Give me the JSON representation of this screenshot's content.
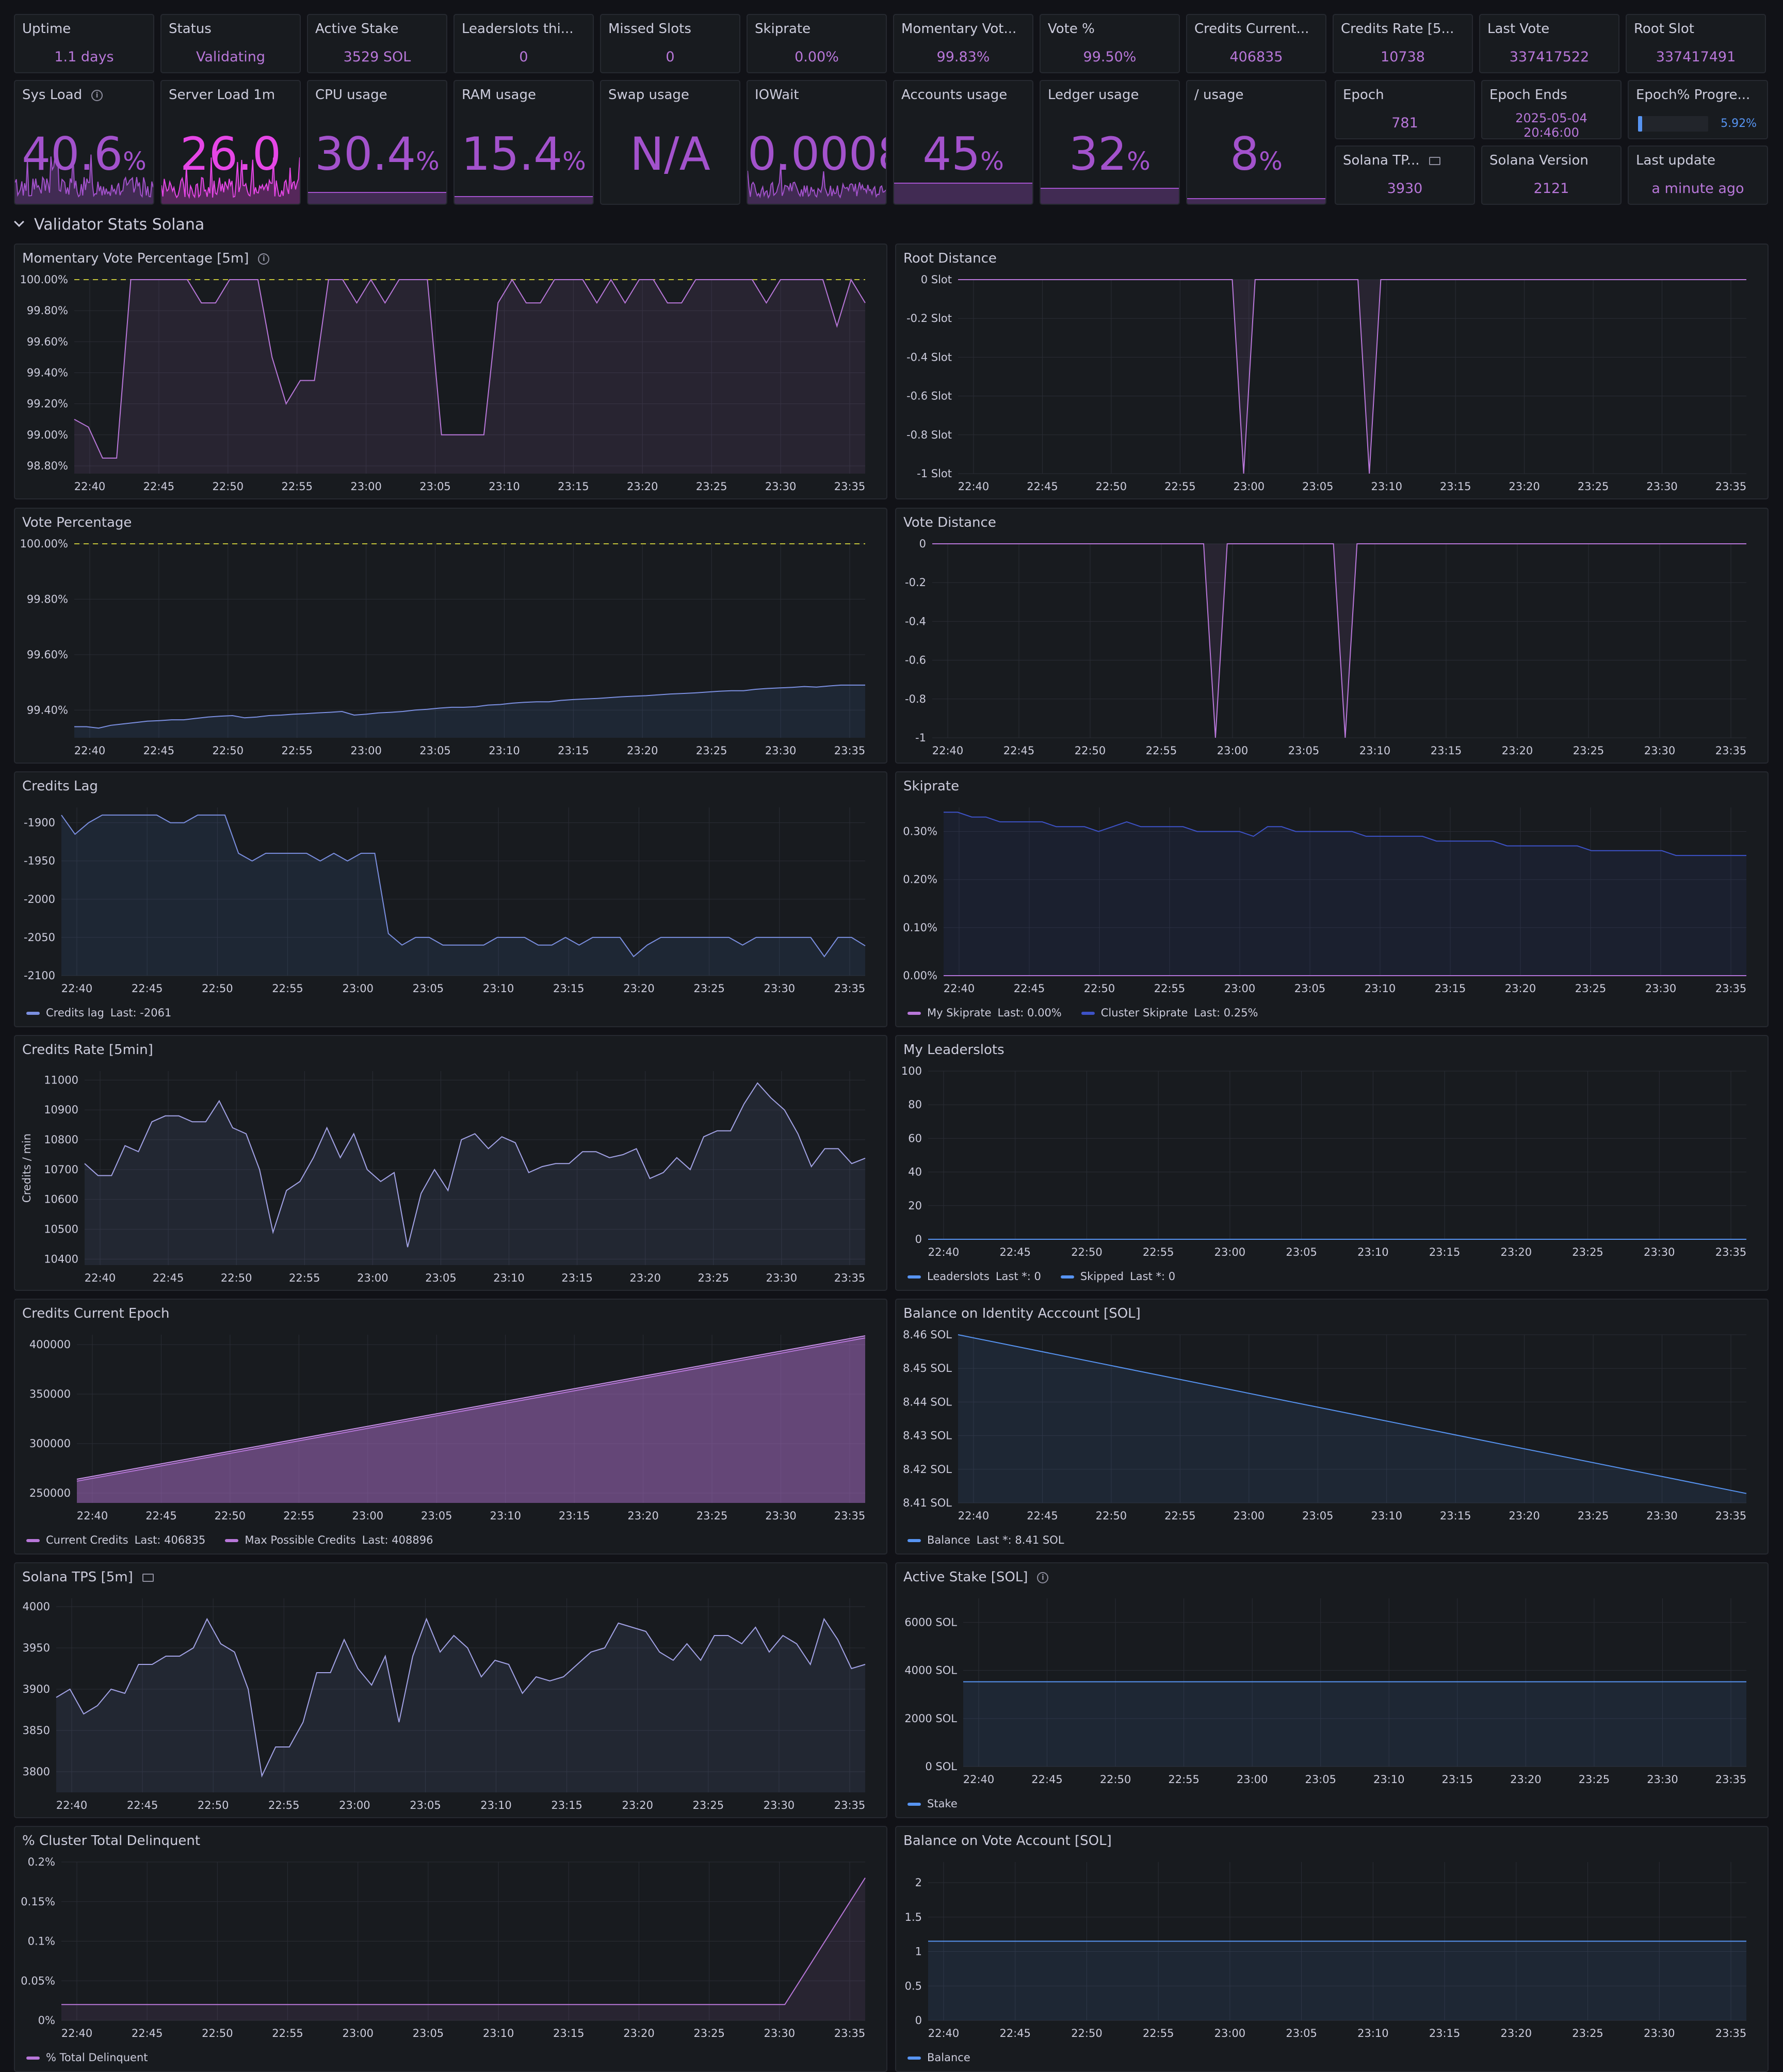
{
  "stats_row1": [
    {
      "title": "Uptime",
      "value": "1.1 days"
    },
    {
      "title": "Status",
      "value": "Validating"
    },
    {
      "title": "Active Stake",
      "value": "3529 SOL"
    },
    {
      "title": "Leaderslots thi...",
      "value": "0"
    },
    {
      "title": "Missed Slots",
      "value": "0"
    },
    {
      "title": "Skiprate",
      "value": "0.00%"
    },
    {
      "title": "Momentary Vot...",
      "value": "99.83%"
    },
    {
      "title": "Vote %",
      "value": "99.50%"
    },
    {
      "title": "Credits Current...",
      "value": "406835"
    },
    {
      "title": "Credits Rate [5...",
      "value": "10738"
    },
    {
      "title": "Last Vote",
      "value": "337417522"
    },
    {
      "title": "Root Slot",
      "value": "337417491"
    }
  ],
  "gauges": [
    {
      "title": "Sys Load",
      "value": "40.6",
      "unit": "%",
      "info": true
    },
    {
      "title": "Server Load 1m",
      "value": "26.0",
      "unit": ""
    },
    {
      "title": "CPU usage",
      "value": "30.4",
      "unit": "%"
    },
    {
      "title": "RAM usage",
      "value": "15.4",
      "unit": "%"
    },
    {
      "title": "Swap usage",
      "value": "N/A",
      "unit": ""
    },
    {
      "title": "IOWait",
      "value": "0.0008",
      "unit": "%"
    },
    {
      "title": "Accounts usage",
      "value": "45",
      "unit": "%"
    },
    {
      "title": "Ledger usage",
      "value": "32",
      "unit": "%"
    },
    {
      "title": "/ usage",
      "value": "8",
      "unit": "%"
    }
  ],
  "small_stats": {
    "epoch": {
      "title": "Epoch",
      "value": "781"
    },
    "epoch_ends": {
      "title": "Epoch Ends",
      "date": "2025-05-04",
      "time": "20:46:00"
    },
    "epoch_progress": {
      "title": "Epoch% Progre...",
      "value": "5.92%",
      "fraction": 0.0592
    },
    "solana_tps": {
      "title": "Solana TP...",
      "value": "3930"
    },
    "solana_version": {
      "title": "Solana Version",
      "value": "2121"
    },
    "last_update": {
      "title": "Last update",
      "value": "a minute ago"
    }
  },
  "row_header": "Validator Stats Solana",
  "colors": {
    "purple": "#b877d9",
    "blue": "#7b8fe0",
    "dark_blue": "#3d52c7",
    "green_threshold": "#73bf69",
    "pink": "#e646e6"
  },
  "time_labels": [
    "22:40",
    "22:45",
    "22:50",
    "22:55",
    "23:00",
    "23:05",
    "23:10",
    "23:15",
    "23:20",
    "23:25",
    "23:30",
    "23:35"
  ],
  "chart_data": [
    {
      "id": "momentary_vote",
      "type": "line",
      "title": "Momentary Vote Percentage [5m]",
      "info": true,
      "yticks": [
        "100.00%",
        "99.80%",
        "99.60%",
        "99.40%",
        "99.20%",
        "99.00%",
        "98.80%"
      ],
      "ylim": [
        98.75,
        100.0
      ],
      "threshold": 100.0,
      "series": [
        {
          "values": [
            99.1,
            99.05,
            98.85,
            98.85,
            100,
            100,
            100,
            100,
            100,
            99.85,
            99.85,
            100,
            100,
            100,
            99.5,
            99.2,
            99.35,
            99.35,
            100,
            100,
            99.85,
            100,
            99.85,
            100,
            100,
            100,
            99.0,
            99.0,
            99.0,
            99.0,
            99.85,
            100,
            99.85,
            99.85,
            100,
            100,
            100,
            99.85,
            100,
            99.85,
            100,
            100,
            99.85,
            99.85,
            100,
            100,
            100,
            100,
            100,
            99.85,
            100,
            100,
            100,
            100,
            99.7,
            100,
            99.85
          ]
        }
      ]
    },
    {
      "id": "root_distance",
      "type": "line",
      "title": "Root Distance",
      "yticks": [
        "0 Slot",
        "-0.2 Slot",
        "-0.4 Slot",
        "-0.6 Slot",
        "-0.8 Slot",
        "-1 Slot"
      ],
      "ylim": [
        -1,
        0
      ],
      "series": [
        {
          "values": [
            0,
            0,
            0,
            0,
            0,
            0,
            0,
            0,
            0,
            0,
            0,
            0,
            0,
            0,
            0,
            0,
            0,
            0,
            0,
            0,
            0,
            0,
            0,
            0,
            0,
            -1,
            0,
            0,
            0,
            0,
            0,
            0,
            0,
            0,
            0,
            0,
            -1,
            0,
            0,
            0,
            0,
            0,
            0,
            0,
            0,
            0,
            0,
            0,
            0,
            0,
            0,
            0,
            0,
            0,
            0,
            0,
            0,
            0,
            0,
            0,
            0,
            0,
            0,
            0,
            0,
            0,
            0,
            0,
            0,
            0
          ]
        }
      ]
    },
    {
      "id": "vote_percentage",
      "type": "line",
      "title": "Vote Percentage",
      "yticks": [
        "100.00%",
        "99.80%",
        "99.60%",
        "99.40%"
      ],
      "ylim": [
        99.3,
        100.0
      ],
      "threshold": 100.0,
      "series": [
        {
          "values": [
            99.34,
            99.34,
            99.335,
            99.345,
            99.35,
            99.355,
            99.36,
            99.362,
            99.365,
            99.365,
            99.37,
            99.375,
            99.378,
            99.38,
            99.372,
            99.375,
            99.38,
            99.382,
            99.385,
            99.387,
            99.39,
            99.392,
            99.395,
            99.382,
            99.385,
            99.39,
            99.392,
            99.395,
            99.4,
            99.403,
            99.407,
            99.41,
            99.41,
            99.412,
            99.418,
            99.42,
            99.425,
            99.428,
            99.43,
            99.43,
            99.435,
            99.438,
            99.44,
            99.442,
            99.445,
            99.448,
            99.45,
            99.452,
            99.455,
            99.458,
            99.46,
            99.462,
            99.465,
            99.468,
            99.47,
            99.47,
            99.475,
            99.478,
            99.48,
            99.482,
            99.485,
            99.483,
            99.487,
            99.49,
            99.49,
            99.49
          ]
        }
      ]
    },
    {
      "id": "vote_distance",
      "type": "line",
      "title": "Vote Distance",
      "yticks": [
        "0",
        "-0.2",
        "-0.4",
        "-0.6",
        "-0.8",
        "-1"
      ],
      "ylim": [
        -1,
        0
      ],
      "series": [
        {
          "values": [
            0,
            0,
            0,
            0,
            0,
            0,
            0,
            0,
            0,
            0,
            0,
            0,
            0,
            0,
            0,
            0,
            0,
            0,
            0,
            0,
            0,
            0,
            0,
            0,
            -1,
            0,
            0,
            0,
            0,
            0,
            0,
            0,
            0,
            0,
            0,
            -1,
            0,
            0,
            0,
            0,
            0,
            0,
            0,
            0,
            0,
            0,
            0,
            0,
            0,
            0,
            0,
            0,
            0,
            0,
            0,
            0,
            0,
            0,
            0,
            0,
            0,
            0,
            0,
            0,
            0,
            0,
            0,
            0,
            0,
            0
          ]
        }
      ]
    },
    {
      "id": "credits_lag",
      "type": "area",
      "title": "Credits Lag",
      "yticks": [
        "-1900",
        "-1950",
        "-2000",
        "-2050",
        "-2100"
      ],
      "ylim": [
        -2100,
        -1880
      ],
      "legend": [
        {
          "name": "Credits lag",
          "last": "Last: -2061",
          "color": "#7b8fe0"
        }
      ],
      "series": [
        {
          "values": [
            -1890,
            -1915,
            -1900,
            -1890,
            -1890,
            -1890,
            -1890,
            -1890,
            -1900,
            -1900,
            -1890,
            -1890,
            -1890,
            -1940,
            -1950,
            -1940,
            -1940,
            -1940,
            -1940,
            -1950,
            -1940,
            -1950,
            -1940,
            -1940,
            -2045,
            -2060,
            -2050,
            -2050,
            -2060,
            -2060,
            -2060,
            -2060,
            -2050,
            -2050,
            -2050,
            -2060,
            -2060,
            -2050,
            -2060,
            -2050,
            -2050,
            -2050,
            -2075,
            -2060,
            -2050,
            -2050,
            -2050,
            -2050,
            -2050,
            -2050,
            -2060,
            -2050,
            -2050,
            -2050,
            -2050,
            -2050,
            -2075,
            -2050,
            -2050,
            -2061
          ]
        }
      ]
    },
    {
      "id": "skiprate",
      "type": "line",
      "title": "Skiprate",
      "yticks": [
        "0.30%",
        "0.20%",
        "0.10%",
        "0.00%"
      ],
      "ylim": [
        0,
        0.35
      ],
      "legend": [
        {
          "name": "My Skiprate",
          "last": "Last: 0.00%",
          "color": "#b877d9"
        },
        {
          "name": "Cluster Skiprate",
          "last": "Last: 0.25%",
          "color": "#3d52c7"
        }
      ],
      "series": [
        {
          "name": "My Skiprate",
          "values": [
            0,
            0,
            0,
            0,
            0,
            0,
            0,
            0,
            0,
            0
          ]
        },
        {
          "name": "Cluster Skiprate",
          "values": [
            0.34,
            0.34,
            0.33,
            0.33,
            0.32,
            0.32,
            0.32,
            0.32,
            0.31,
            0.31,
            0.31,
            0.3,
            0.31,
            0.32,
            0.31,
            0.31,
            0.31,
            0.31,
            0.3,
            0.3,
            0.3,
            0.3,
            0.29,
            0.31,
            0.31,
            0.3,
            0.3,
            0.3,
            0.3,
            0.3,
            0.29,
            0.29,
            0.29,
            0.29,
            0.29,
            0.28,
            0.28,
            0.28,
            0.28,
            0.28,
            0.27,
            0.27,
            0.27,
            0.27,
            0.27,
            0.27,
            0.26,
            0.26,
            0.26,
            0.26,
            0.26,
            0.26,
            0.25,
            0.25,
            0.25,
            0.25,
            0.25,
            0.25
          ]
        }
      ]
    },
    {
      "id": "credits_rate",
      "type": "line",
      "title": "Credits Rate [5min]",
      "ylabel": "Credits / min",
      "yticks": [
        "11000",
        "10900",
        "10800",
        "10700",
        "10600",
        "10500",
        "10400"
      ],
      "ylim": [
        10380,
        11030
      ],
      "series": [
        {
          "values": [
            10720,
            10680,
            10680,
            10780,
            10760,
            10860,
            10880,
            10880,
            10860,
            10860,
            10930,
            10840,
            10820,
            10700,
            10490,
            10630,
            10660,
            10740,
            10840,
            10740,
            10820,
            10700,
            10660,
            10690,
            10440,
            10620,
            10700,
            10630,
            10800,
            10820,
            10770,
            10810,
            10790,
            10690,
            10710,
            10720,
            10720,
            10760,
            10760,
            10740,
            10750,
            10770,
            10670,
            10690,
            10740,
            10700,
            10810,
            10830,
            10830,
            10920,
            10990,
            10940,
            10900,
            10820,
            10710,
            10770,
            10770,
            10720,
            10738
          ]
        }
      ]
    },
    {
      "id": "leaderslots",
      "type": "line",
      "title": "My Leaderslots",
      "yticks": [
        "100",
        "80",
        "60",
        "40",
        "20",
        "0"
      ],
      "ylim": [
        0,
        100
      ],
      "legend": [
        {
          "name": "Leaderslots",
          "last": "Last *: 0",
          "color": "#5794f2"
        },
        {
          "name": "Skipped",
          "last": "Last *: 0",
          "color": "#5794f2"
        }
      ],
      "series": [
        {
          "values": [
            0,
            0,
            0,
            0,
            0,
            0,
            0,
            0
          ]
        }
      ]
    },
    {
      "id": "credits_current_epoch",
      "type": "area",
      "title": "Credits Current Epoch",
      "yticks": [
        "400000",
        "350000",
        "300000",
        "250000"
      ],
      "ylim": [
        240000,
        410000
      ],
      "legend": [
        {
          "name": "Current Credits",
          "last": "Last: 406835",
          "color": "#b877d9"
        },
        {
          "name": "Max Possible Credits",
          "last": "Last: 408896",
          "color": "#b877d9"
        }
      ],
      "series": [
        {
          "name": "Current Credits",
          "values": [
            262000,
            406835
          ]
        },
        {
          "name": "Max Possible Credits",
          "values": [
            264000,
            408896
          ]
        }
      ]
    },
    {
      "id": "balance_identity",
      "type": "line",
      "title": "Balance on Identity Acccount [SOL]",
      "yticks": [
        "8.46 SOL",
        "8.45 SOL",
        "8.44 SOL",
        "8.43 SOL",
        "8.42 SOL",
        "8.41 SOL"
      ],
      "ylim": [
        8.41,
        8.46
      ],
      "legend": [
        {
          "name": "Balance",
          "last": "Last *: 8.41 SOL",
          "color": "#5794f2"
        }
      ],
      "series": [
        {
          "values": [
            8.46,
            8.4128
          ]
        }
      ]
    },
    {
      "id": "solana_tps",
      "type": "line",
      "title": "Solana TPS [5m]",
      "doc": true,
      "yticks": [
        "4000",
        "3950",
        "3900",
        "3850",
        "3800"
      ],
      "ylim": [
        3775,
        4010
      ],
      "series": [
        {
          "values": [
            3890,
            3900,
            3870,
            3880,
            3900,
            3895,
            3930,
            3930,
            3940,
            3940,
            3950,
            3985,
            3955,
            3945,
            3900,
            3795,
            3830,
            3830,
            3860,
            3920,
            3920,
            3960,
            3925,
            3905,
            3940,
            3860,
            3940,
            3985,
            3945,
            3965,
            3950,
            3915,
            3935,
            3930,
            3895,
            3915,
            3910,
            3915,
            3930,
            3945,
            3950,
            3980,
            3975,
            3970,
            3945,
            3935,
            3955,
            3935,
            3965,
            3965,
            3955,
            3975,
            3945,
            3965,
            3955,
            3930,
            3985,
            3960,
            3925,
            3930
          ]
        }
      ]
    },
    {
      "id": "active_stake",
      "type": "area",
      "title": "Active Stake [SOL]",
      "info": true,
      "yticks": [
        "6000 SOL",
        "4000 SOL",
        "2000 SOL",
        "0 SOL"
      ],
      "ylim": [
        0,
        7000
      ],
      "legend": [
        {
          "name": "Stake",
          "last": "",
          "color": "#5794f2"
        }
      ],
      "series": [
        {
          "values": [
            3529,
            3529
          ]
        }
      ]
    },
    {
      "id": "cluster_delinquent",
      "type": "line",
      "title": "% Cluster Total Delinquent",
      "yticks": [
        "0.2%",
        "0.15%",
        "0.1%",
        "0.05%",
        "0%"
      ],
      "ylim": [
        0,
        0.2
      ],
      "legend": [
        {
          "name": "% Total Delinquent",
          "last": "",
          "color": "#b877d9"
        }
      ],
      "series": [
        {
          "values": [
            0.02,
            0.02,
            0.02,
            0.02,
            0.02,
            0.02,
            0.02,
            0.02,
            0.02,
            0.02,
            0.18
          ]
        }
      ]
    },
    {
      "id": "balance_vote",
      "type": "area",
      "title": "Balance on Vote Account [SOL]",
      "yticks": [
        "2",
        "1.5",
        "1",
        "0.5",
        "0"
      ],
      "ylim": [
        0,
        2.3
      ],
      "legend": [
        {
          "name": "Balance",
          "last": "",
          "color": "#5794f2"
        }
      ],
      "series": [
        {
          "values": [
            1.15,
            1.15
          ]
        }
      ]
    }
  ]
}
